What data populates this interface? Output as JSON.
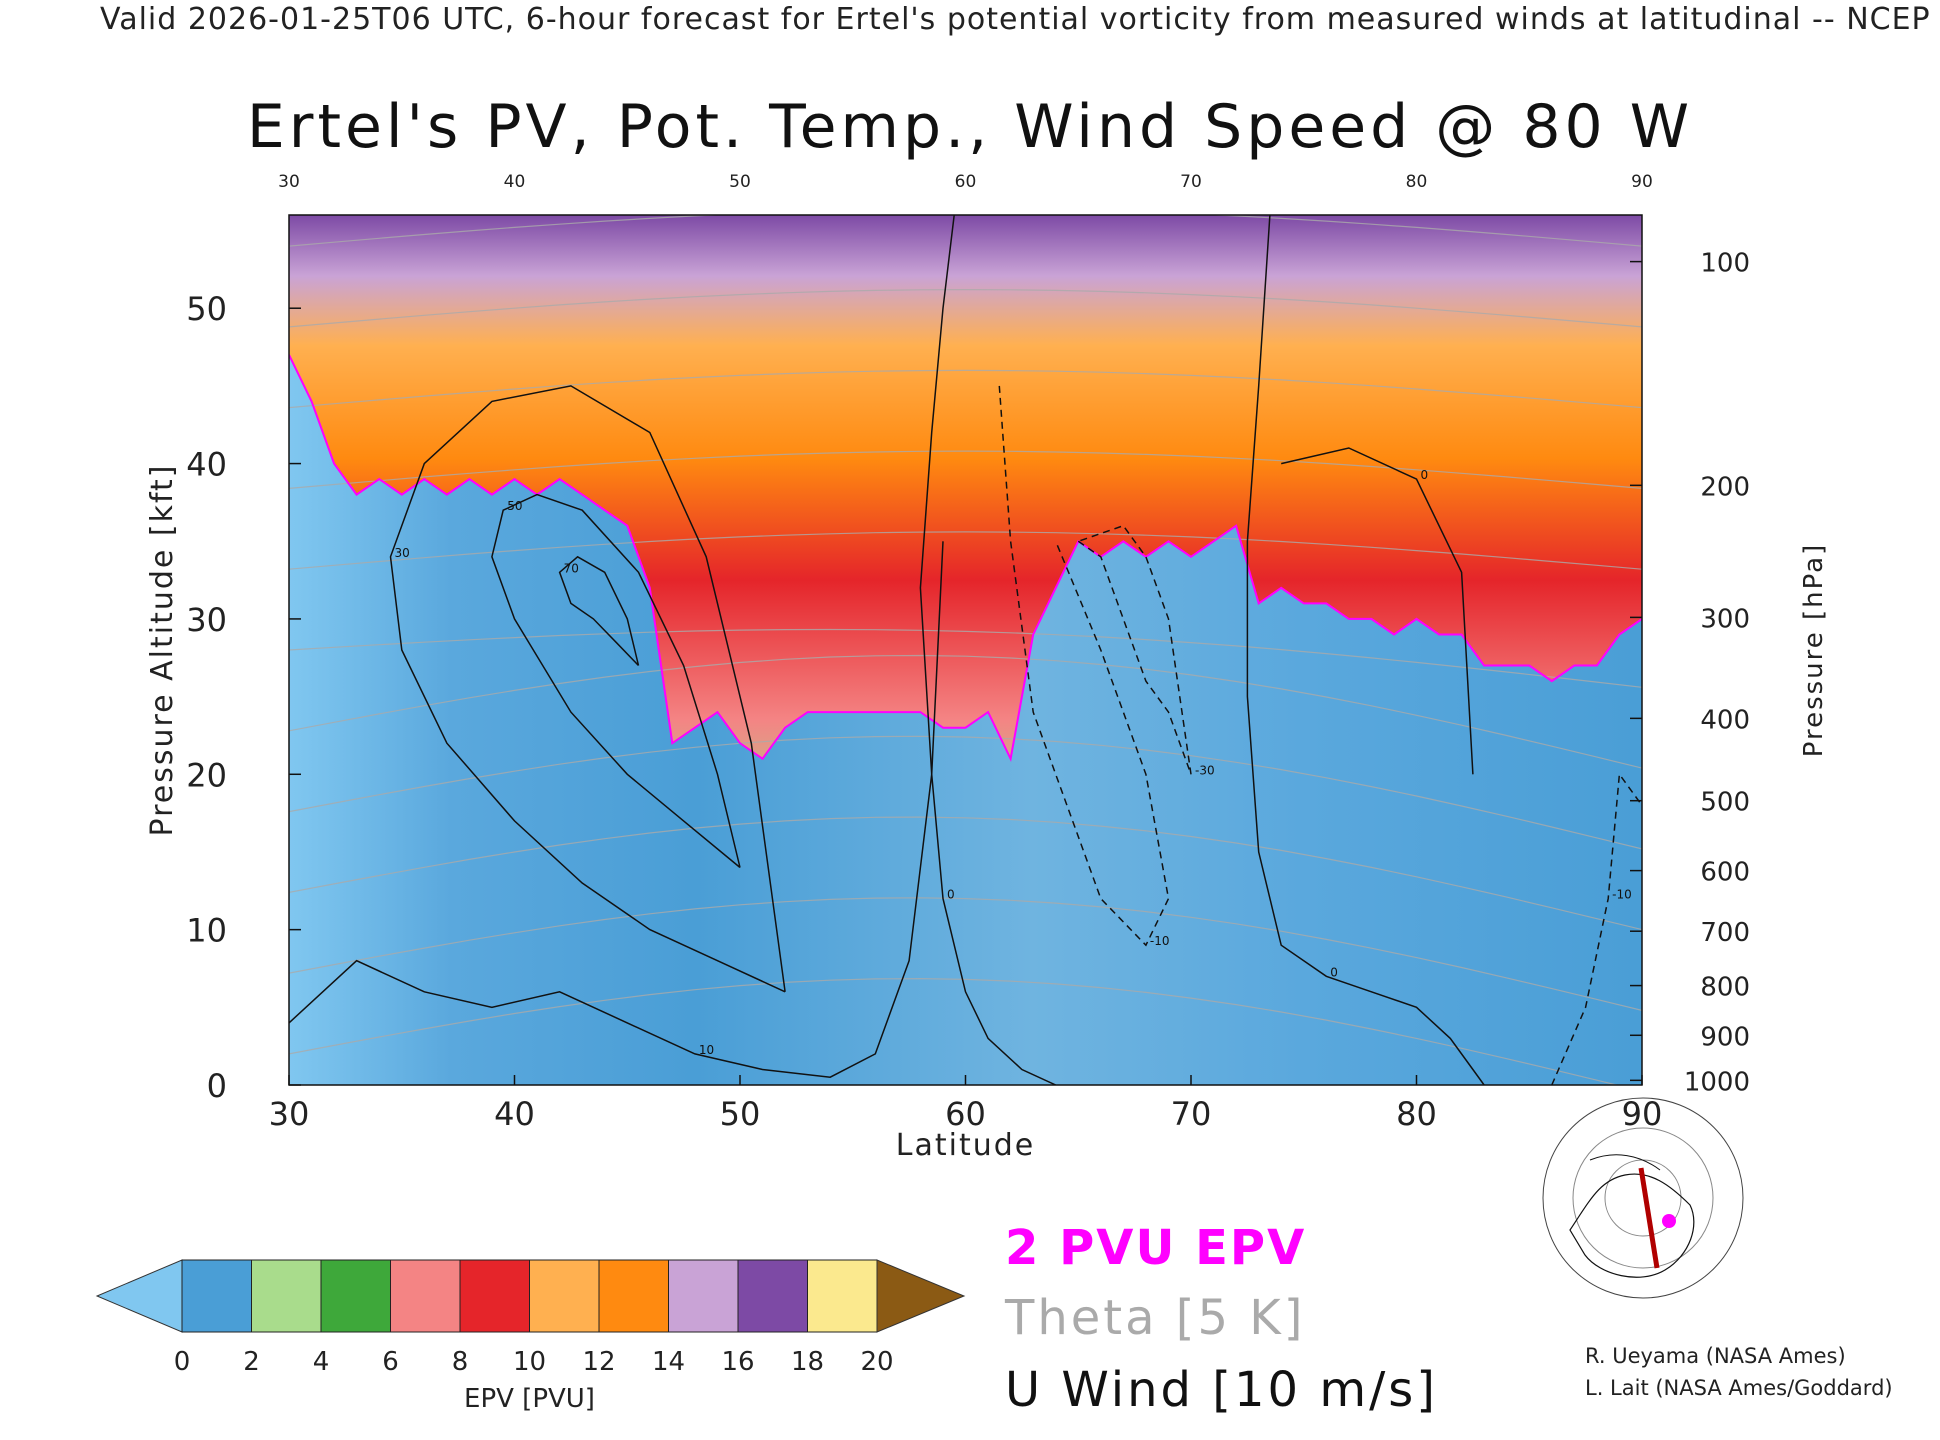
{
  "header": "Valid 2026-01-25T06 UTC, 6-hour forecast for Ertel's potential vorticity from measured winds at latitudinal -- NCEP",
  "title": "Ertel's PV, Pot. Temp., Wind Speed @ 80 W",
  "legend": {
    "epv_label": "2 PVU EPV",
    "theta_label": "Theta [5 K]",
    "wind_label": "U Wind [10 m/s]",
    "epv_color": "#ff00ff",
    "theta_color": "#aaaaaa",
    "wind_color": "#111111"
  },
  "credits": [
    "R. Ueyama (NASA Ames)",
    "L. Lait (NASA Ames/Goddard)"
  ],
  "colorbar": {
    "label": "EPV [PVU]",
    "ticks": [
      "0",
      "2",
      "4",
      "6",
      "8",
      "10",
      "12",
      "14",
      "16",
      "18",
      "20"
    ],
    "colors": [
      "#4a9ed6",
      "#a9dc8c",
      "#3ea83a",
      "#f48484",
      "#e5252a",
      "#ffb050",
      "#ff8a10",
      "#c9a3d6",
      "#7d4aa5",
      "#fbe98e"
    ],
    "under_color": "#80c7f0",
    "over_color": "#8b5a14"
  },
  "chart_data": {
    "type": "heatmap",
    "title": "Ertel's PV, Pot. Temp., Wind Speed @ 80 W",
    "xlabel": "Latitude",
    "ylabel_left": "Pressure Altitude [kft]",
    "ylabel_right": "Pressure [hPa]",
    "xlim": [
      30,
      90
    ],
    "ylim": [
      0,
      56
    ],
    "x_ticks": [
      30,
      40,
      50,
      60,
      70,
      80,
      90
    ],
    "y_ticks": [
      0,
      10,
      20,
      30,
      40,
      50
    ],
    "pressure_ticks": [
      {
        "label": "100",
        "kft": 53.0
      },
      {
        "label": "200",
        "kft": 38.6
      },
      {
        "label": "300",
        "kft": 30.1
      },
      {
        "label": "400",
        "kft": 23.6
      },
      {
        "label": "500",
        "kft": 18.3
      },
      {
        "label": "600",
        "kft": 13.8
      },
      {
        "label": "700",
        "kft": 9.9
      },
      {
        "label": "800",
        "kft": 6.4
      },
      {
        "label": "900",
        "kft": 3.2
      },
      {
        "label": "1000",
        "kft": 0.3
      }
    ],
    "tropopause_2pvu": {
      "lat": [
        30,
        31,
        32,
        33,
        34,
        35,
        36,
        37,
        38,
        39,
        40,
        41,
        42,
        43,
        44,
        45,
        46,
        47,
        48,
        49,
        50,
        51,
        52,
        53,
        54,
        55,
        56,
        57,
        58,
        59,
        60,
        61,
        62,
        63,
        64,
        65,
        66,
        67,
        68,
        69,
        70,
        71,
        72,
        73,
        74,
        75,
        76,
        77,
        78,
        79,
        80,
        81,
        82,
        83,
        84,
        85,
        86,
        87,
        88,
        89,
        90
      ],
      "kft": [
        47,
        44,
        40,
        38,
        39,
        38,
        39,
        38,
        39,
        38,
        39,
        38,
        39,
        38,
        37,
        36,
        32,
        22,
        23,
        24,
        22,
        21,
        23,
        24,
        24,
        24,
        24,
        24,
        24,
        23,
        23,
        24,
        21,
        29,
        32,
        35,
        34,
        35,
        34,
        35,
        34,
        35,
        36,
        31,
        32,
        31,
        31,
        30,
        30,
        29,
        30,
        29,
        29,
        27,
        27,
        27,
        26,
        27,
        27,
        29,
        30
      ]
    },
    "u_wind_contours": [
      {
        "value": 70,
        "label": "70",
        "lat": [
          45.5,
          44.5,
          43.5,
          42.5,
          42.0,
          42.8,
          44.0,
          45.0,
          45.5
        ],
        "kft": [
          27.0,
          28.5,
          30.0,
          31.0,
          33.0,
          34.0,
          33.0,
          30.0,
          27.0
        ]
      },
      {
        "value": 50,
        "label": "50",
        "lat": [
          50.0,
          47.5,
          45.0,
          42.5,
          40.0,
          39.0,
          39.5,
          41.0,
          43.0,
          45.5,
          47.5,
          49.0,
          50.0
        ],
        "kft": [
          14.0,
          17.0,
          20.0,
          24.0,
          30.0,
          34.0,
          37.0,
          38.0,
          37.0,
          33.0,
          27.0,
          20.0,
          14.0
        ]
      },
      {
        "value": 30,
        "label": "30",
        "lat": [
          52.0,
          49.0,
          46.0,
          43.0,
          40.0,
          37.0,
          35.0,
          34.5,
          36.0,
          39.0,
          42.5,
          46.0,
          48.5,
          50.5,
          52.0
        ],
        "kft": [
          6.0,
          8.0,
          10.0,
          13.0,
          17.0,
          22.0,
          28.0,
          34.0,
          40.0,
          44.0,
          45.0,
          42.0,
          34.0,
          22.0,
          6.0
        ]
      },
      {
        "value": 10,
        "label": "10",
        "lat": [
          30.0,
          33.0,
          36.0,
          39.0,
          42.0,
          45.0,
          48.0,
          51.0,
          54.0,
          56.0,
          57.5,
          58.5,
          59.0
        ],
        "kft": [
          4.0,
          8.0,
          6.0,
          5.0,
          6.0,
          4.0,
          2.0,
          1.0,
          0.5,
          2.0,
          8.0,
          20.0,
          35.0
        ]
      },
      {
        "value": 0,
        "label": "0",
        "lat": [
          59.5,
          59.0,
          58.5,
          58.0,
          58.5,
          59.0,
          60.0,
          61.0,
          62.5,
          64.0
        ],
        "kft": [
          56.0,
          50.0,
          42.0,
          32.0,
          20.0,
          12.0,
          6.0,
          3.0,
          1.0,
          0.0
        ]
      },
      {
        "value": 0,
        "label": "0",
        "lat": [
          73.5,
          73.0,
          72.5,
          72.5,
          73.0,
          74.0,
          76.0,
          78.0,
          80.0,
          81.5,
          82.5,
          83.0
        ],
        "kft": [
          56.0,
          45.0,
          35.0,
          25.0,
          15.0,
          9.0,
          7.0,
          6.0,
          5.0,
          3.0,
          1.0,
          0.0
        ]
      },
      {
        "value": 0,
        "label": "0",
        "lat": [
          74.0,
          77.0,
          80.0,
          82.0,
          82.5
        ],
        "kft": [
          40.0,
          41.0,
          39.0,
          33.0,
          20.0
        ]
      },
      {
        "value": -10,
        "label": "-10",
        "lat": [
          61.5,
          62.0,
          63.0,
          64.0,
          66.0,
          68.0,
          69.0,
          68.0,
          66.0,
          64.0
        ],
        "kft": [
          45.0,
          35.0,
          24.0,
          20.0,
          12.0,
          9.0,
          12.0,
          20.0,
          28.0,
          35.0
        ],
        "dashed": true
      },
      {
        "value": -30,
        "label": "-30",
        "lat": [
          65.0,
          66.0,
          67.0,
          68.0,
          69.0,
          70.0,
          69.0,
          68.0,
          67.0,
          65.0
        ],
        "kft": [
          35.0,
          34.0,
          30.0,
          26.0,
          24.0,
          20.0,
          30.0,
          34.0,
          36.0,
          35.0
        ],
        "dashed": true
      },
      {
        "value": -10,
        "label": "-10",
        "lat": [
          86.0,
          87.5,
          88.5,
          89.0,
          90.0
        ],
        "kft": [
          0.0,
          5.0,
          12.0,
          20.0,
          18.0
        ],
        "dashed": true
      }
    ],
    "theta_levels_k": [
      290,
      300,
      310,
      320,
      330,
      340,
      350,
      360,
      370,
      380,
      390
    ],
    "colorbar_units": "PVU"
  }
}
